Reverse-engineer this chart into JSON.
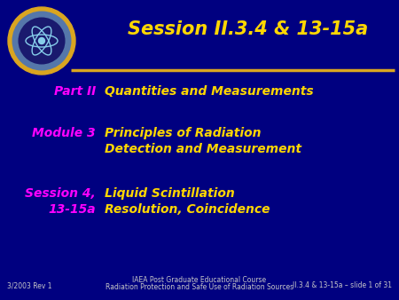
{
  "bg_color": "#000080",
  "title": "Session II.3.4 & 13-15a",
  "title_color": "#FFD700",
  "title_fontsize": 15,
  "row1_label": "Part II",
  "row1_text": "Quantities and Measurements",
  "row2_label": "Module 3",
  "row2_text_line1": "Principles of Radiation",
  "row2_text_line2": "Detection and Measurement",
  "row3_label_line1": "Session 4,",
  "row3_label_line2": "13-15a",
  "row3_text_line1": "Liquid Scintillation",
  "row3_text_line2": "Resolution, Coincidence",
  "label_color": "#FF00FF",
  "content_color": "#FFD700",
  "footer_left": "3/2003 Rev 1",
  "footer_center_line1": "IAEA Post Graduate Educational Course",
  "footer_center_line2": "Radiation Protection and Safe Use of Radiation Sources",
  "footer_right": "II.3.4 & 13-15a – slide 1 of 31",
  "footer_color": "#C8C8C8",
  "footer_fontsize": 5.5,
  "label_fontsize": 10,
  "content_fontsize": 10,
  "logo_outer_color": "#DAA520",
  "logo_inner_color": "#1a1a6e",
  "logo_atom_color": "#87CEEB"
}
